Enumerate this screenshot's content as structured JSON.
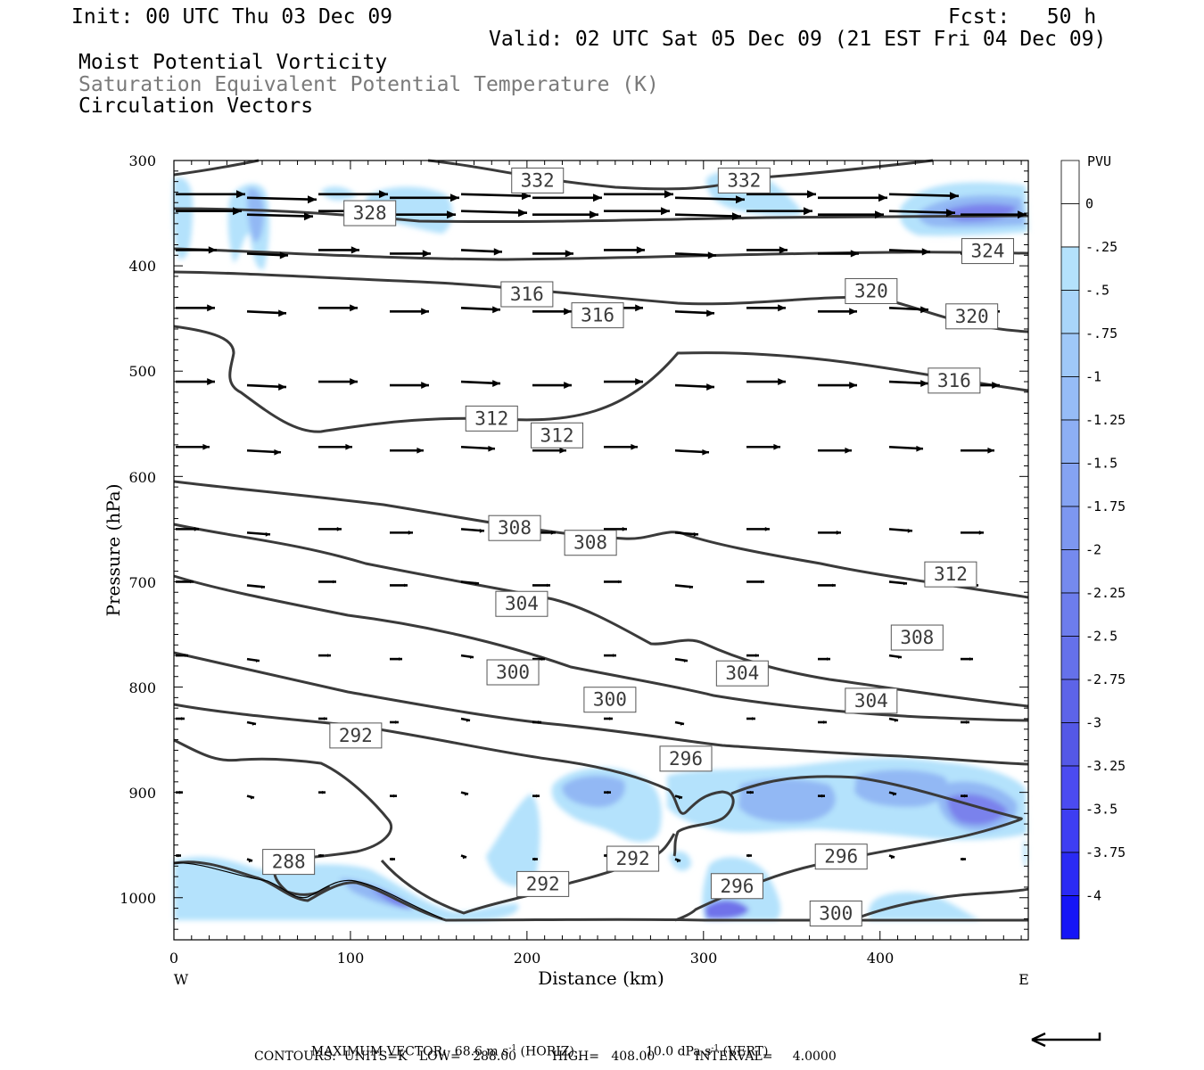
{
  "header": {
    "init": "Init: 00 UTC Thu 03 Dec 09",
    "fcst": "Fcst:   50 h",
    "valid": "Valid: 02 UTC Sat 05 Dec 09 (21 EST Fri 04 Dec 09)",
    "field1": "Moist Potential Vorticity",
    "field2": "Saturation Equivalent Potential Temperature (K)",
    "field3": "Circulation Vectors"
  },
  "footer": {
    "max_vector": "MAXIMUM VECTOR:  68.6 m s",
    "max_vector_unit_sup": "-1",
    "horiz": " (HORIZ)",
    "vert_val": "10.0 dPa s",
    "vert_sup": "-1",
    "vert_label": " (VERT)",
    "contours": "CONTOURS:  UNITS=K   LOW=   288.00         HIGH=   408.00          INTERVAL=     4.0000"
  },
  "colors": {
    "contour": "#3a3a3a",
    "pv_light": "#b4e2fc",
    "pv_mid": "#92b8f4",
    "pv_dark": "#6f72ea",
    "pv_darkest": "#2020f0"
  },
  "chart_data": {
    "type": "cross-section",
    "xlabel": "Distance (km)",
    "ylabel": "Pressure (hPa)",
    "x_left_label": "W",
    "x_right_label": "E",
    "xlim": [
      0,
      484
    ],
    "ylim": [
      1040,
      300
    ],
    "x_ticks": [
      "0",
      "100",
      "200",
      "300",
      "400"
    ],
    "y_ticks": [
      "300",
      "400",
      "500",
      "600",
      "700",
      "800",
      "900",
      "1000"
    ],
    "colorbar": {
      "title": "PVU",
      "levels": [
        "0",
        "-.25",
        "-.5",
        "-.75",
        "-1",
        "-1.25",
        "-1.5",
        "-1.75",
        "-2",
        "-2.25",
        "-2.5",
        "-2.75",
        "-3",
        "-3.25",
        "-3.5",
        "-3.75",
        "-4"
      ],
      "colors": [
        "#ffffff",
        "#ffffff",
        "#b4e2fc",
        "#a9d5fa",
        "#9fc8f8",
        "#96bcf6",
        "#8daff4",
        "#85a3f2",
        "#7d97f0",
        "#758aee",
        "#6d7dec",
        "#6571ea",
        "#5d64e8",
        "#5458e6",
        "#4b4bf0",
        "#3e3ef2",
        "#2a2af4",
        "#1515f6"
      ]
    },
    "contour_labels": [
      {
        "text": "332",
        "x": 206,
        "p": 319
      },
      {
        "text": "332",
        "x": 323,
        "p": 319
      },
      {
        "text": "328",
        "x": 111,
        "p": 350
      },
      {
        "text": "324",
        "x": 461,
        "p": 386
      },
      {
        "text": "320",
        "x": 395,
        "p": 424
      },
      {
        "text": "320",
        "x": 452,
        "p": 448
      },
      {
        "text": "316",
        "x": 200,
        "p": 427
      },
      {
        "text": "316",
        "x": 240,
        "p": 447
      },
      {
        "text": "316",
        "x": 442,
        "p": 509
      },
      {
        "text": "312",
        "x": 180,
        "p": 545
      },
      {
        "text": "312",
        "x": 217,
        "p": 561
      },
      {
        "text": "312",
        "x": 440,
        "p": 693
      },
      {
        "text": "308",
        "x": 193,
        "p": 649
      },
      {
        "text": "308",
        "x": 236,
        "p": 663
      },
      {
        "text": "308",
        "x": 421,
        "p": 753
      },
      {
        "text": "304",
        "x": 197,
        "p": 721
      },
      {
        "text": "304",
        "x": 322,
        "p": 787
      },
      {
        "text": "304",
        "x": 395,
        "p": 813
      },
      {
        "text": "300",
        "x": 192,
        "p": 786
      },
      {
        "text": "300",
        "x": 247,
        "p": 812
      },
      {
        "text": "300",
        "x": 375,
        "p": 1015
      },
      {
        "text": "296",
        "x": 290,
        "p": 868
      },
      {
        "text": "296",
        "x": 378,
        "p": 961
      },
      {
        "text": "296",
        "x": 319,
        "p": 989
      },
      {
        "text": "292",
        "x": 103,
        "p": 846
      },
      {
        "text": "292",
        "x": 260,
        "p": 963
      },
      {
        "text": "292",
        "x": 209,
        "p": 987
      },
      {
        "text": "288",
        "x": 65,
        "p": 966
      }
    ]
  }
}
